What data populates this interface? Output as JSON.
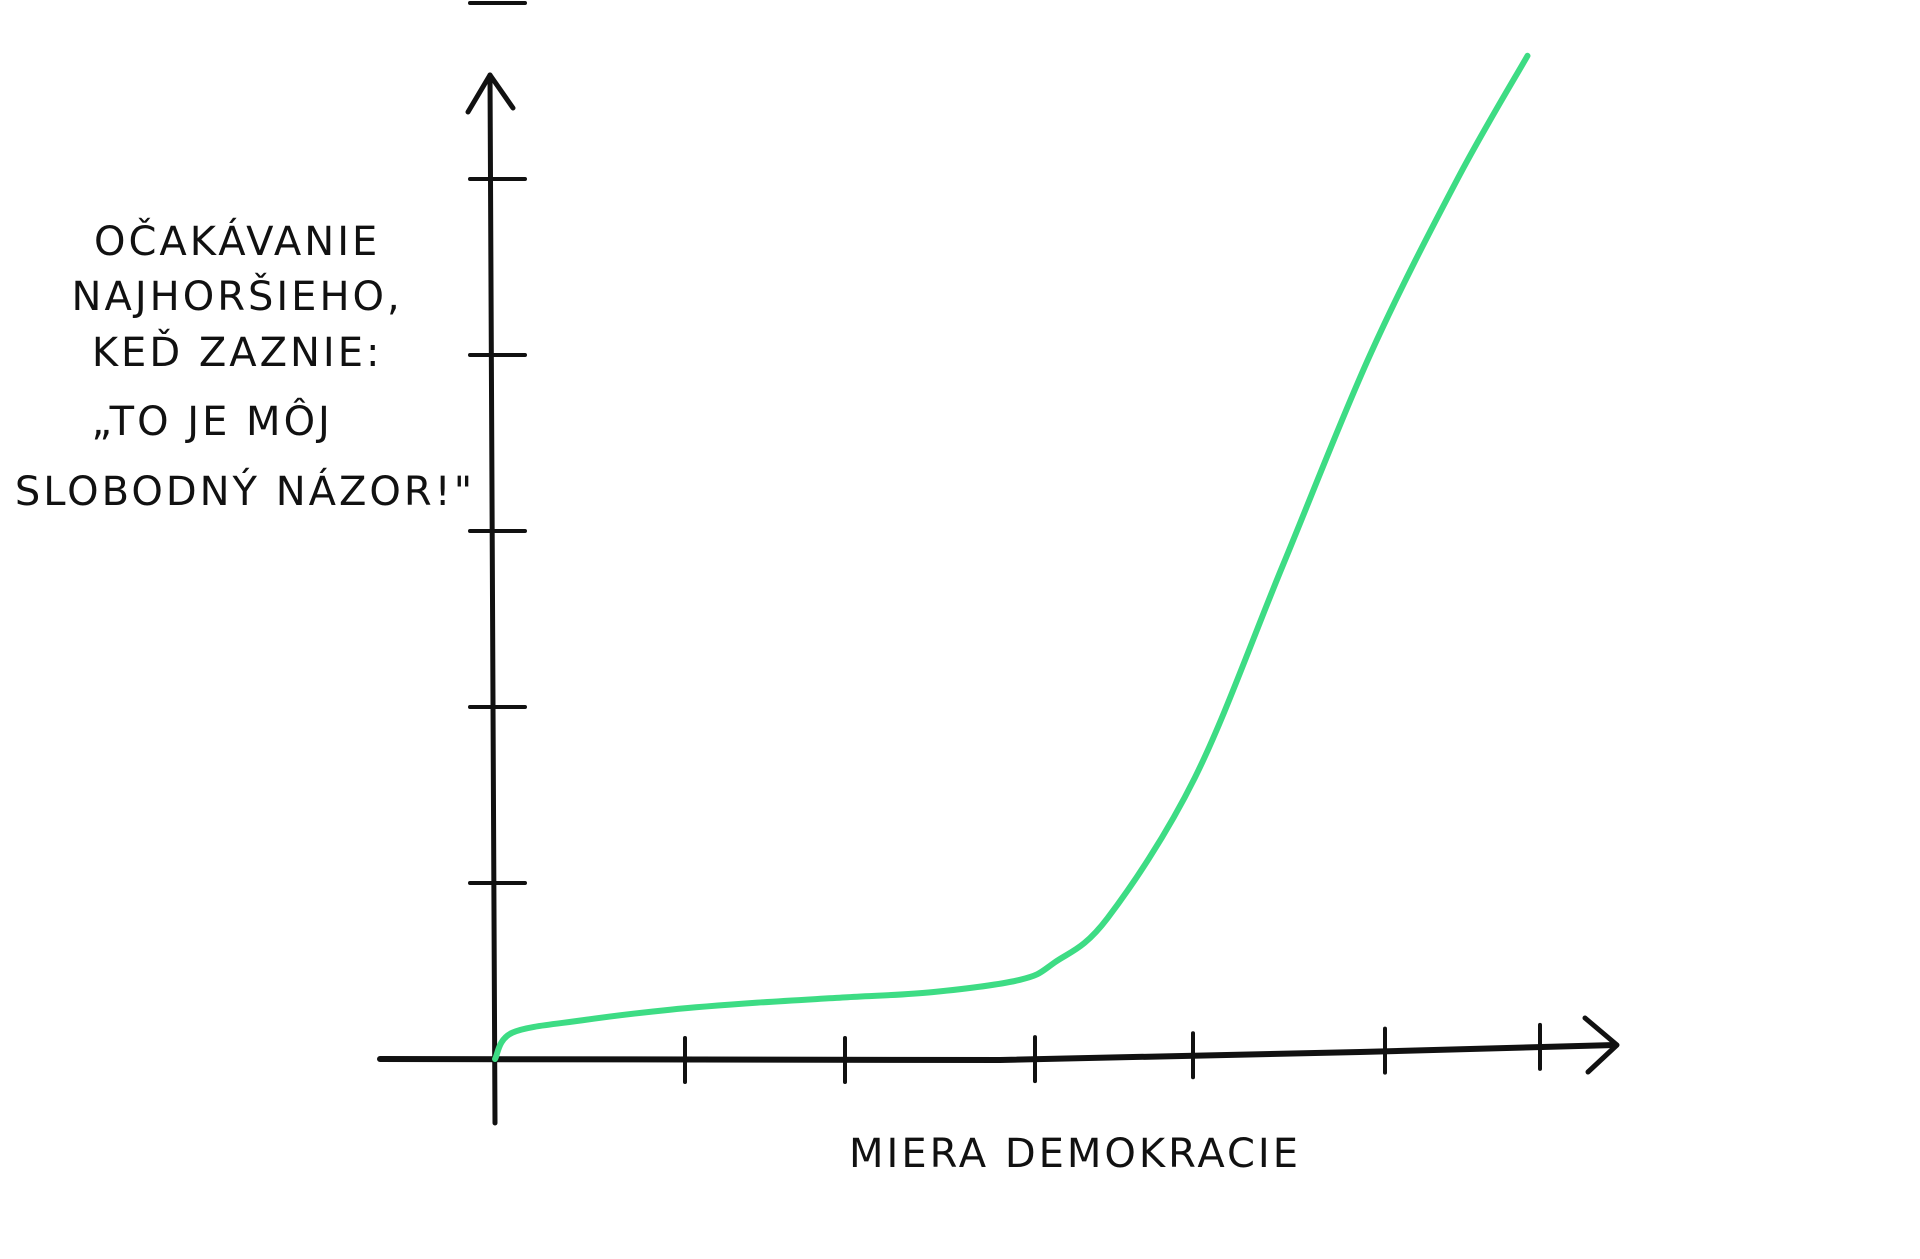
{
  "chart_data": {
    "type": "line",
    "title": "",
    "xlabel": "MIERA DEMOKRACIE",
    "ylabel_lines": [
      "OČAKÁVANIE",
      "NAJHORŠIEHO,",
      "KEĎ ZAZNIE:",
      "„TO JE MÔJ",
      "SLOBODNÝ NÁZOR!\""
    ],
    "x_ticks": [
      1,
      2,
      3,
      4,
      5,
      6
    ],
    "y_ticks": [
      1,
      2,
      3,
      4,
      5,
      6
    ],
    "xlim": [
      0,
      6.5
    ],
    "ylim": [
      0,
      6.5
    ],
    "grid": false,
    "series": [
      {
        "color": "#3ddc84",
        "x": [
          0,
          0.1,
          0.5,
          1.0,
          1.5,
          2.0,
          2.5,
          3.0,
          3.2,
          3.5,
          4.0,
          4.5,
          5.0,
          5.5,
          5.9
        ],
        "y": [
          0,
          0.15,
          0.22,
          0.28,
          0.32,
          0.35,
          0.38,
          0.45,
          0.55,
          0.8,
          1.6,
          2.8,
          4.0,
          5.0,
          5.7
        ]
      }
    ]
  }
}
